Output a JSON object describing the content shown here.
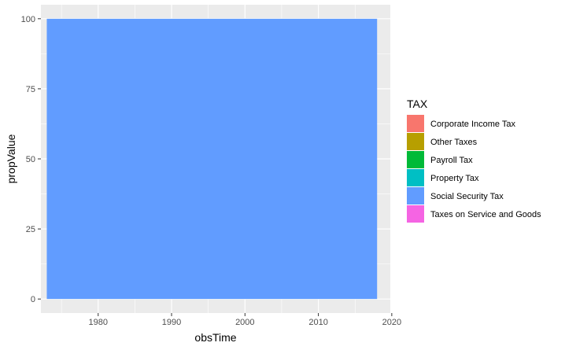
{
  "chart_data": {
    "type": "area",
    "stacked": true,
    "xlabel": "obsTime",
    "ylabel": "propValue",
    "x_range": [
      1972.2,
      2019.8
    ],
    "y_range": [
      -5,
      105
    ],
    "x_ticks": [
      1980,
      1990,
      2000,
      2010,
      2020
    ],
    "y_ticks": [
      0,
      25,
      50,
      75,
      100
    ],
    "grid": true,
    "background": "#ebebeb",
    "legend": {
      "title": "TAX",
      "position": "right",
      "entries": [
        {
          "name": "Corporate Income Tax",
          "color": "#F8766D"
        },
        {
          "name": "Other Taxes",
          "color": "#B79F00"
        },
        {
          "name": "Payroll Tax",
          "color": "#00BA38"
        },
        {
          "name": "Property Tax",
          "color": "#00BFC4"
        },
        {
          "name": "Social Security Tax",
          "color": "#619CFF"
        },
        {
          "name": "Taxes on Service and Goods",
          "color": "#F564E3"
        }
      ]
    },
    "series": [
      {
        "name": "Social Security Tax",
        "color": "#619CFF",
        "x": [
          1973,
          2018
        ],
        "y": [
          100,
          100
        ]
      }
    ]
  }
}
